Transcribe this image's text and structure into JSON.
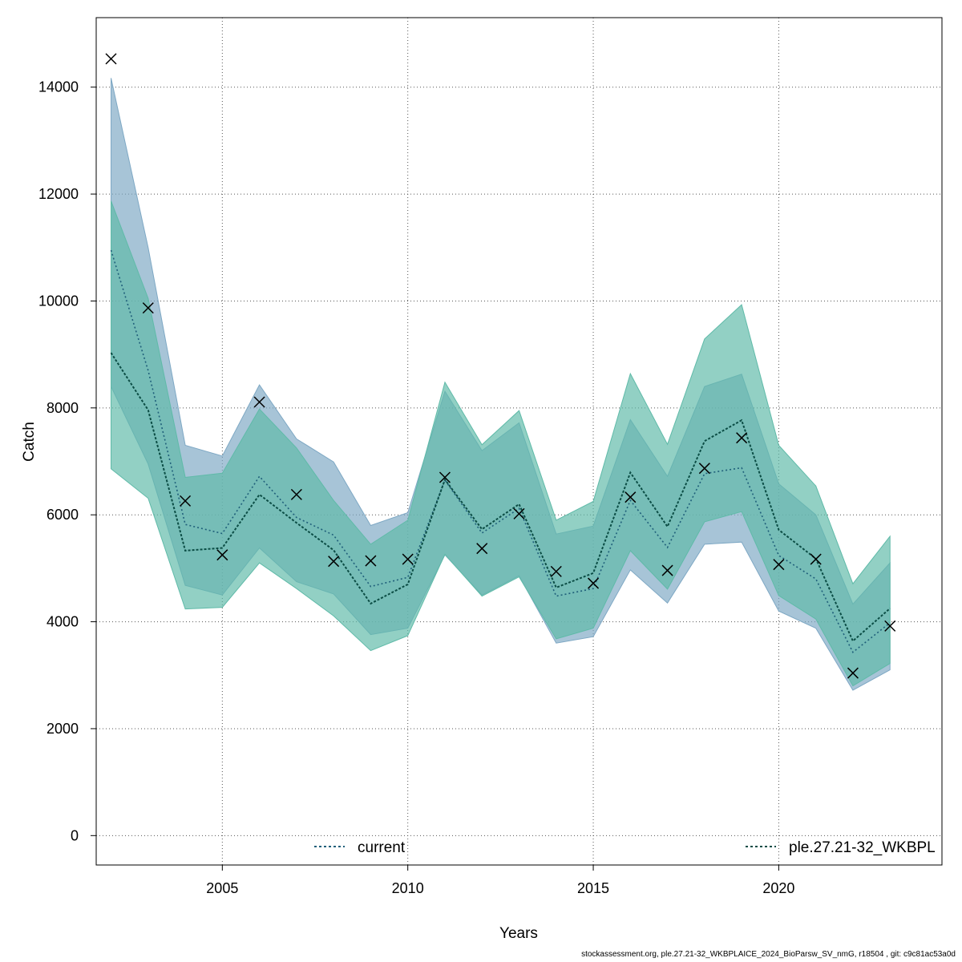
{
  "chart_data": {
    "type": "line",
    "xlabel": "Years",
    "ylabel": "Catch",
    "xlim": [
      2001.6,
      2024.4
    ],
    "ylim": [
      -550,
      15300
    ],
    "x_ticks": [
      2005,
      2010,
      2015,
      2020
    ],
    "y_ticks": [
      0,
      2000,
      4000,
      6000,
      8000,
      10000,
      12000,
      14000
    ],
    "grid": true,
    "legend_placement": "bottom",
    "x": [
      2002,
      2003,
      2004,
      2005,
      2006,
      2007,
      2008,
      2009,
      2010,
      2011,
      2012,
      2013,
      2014,
      2015,
      2016,
      2017,
      2018,
      2019,
      2020,
      2021,
      2022,
      2023
    ],
    "series": [
      {
        "name": "current",
        "line_color": "#1f5f7a",
        "band_color": "#7ea8c4",
        "estimate": [
          10950,
          8700,
          5820,
          5650,
          6720,
          5950,
          5620,
          4660,
          4830,
          6650,
          5660,
          6120,
          4480,
          4620,
          6270,
          5390,
          6770,
          6880,
          5240,
          4800,
          3430,
          3980
        ],
        "lower": [
          8400,
          6950,
          4680,
          4500,
          5380,
          4750,
          4520,
          3760,
          3880,
          5250,
          4500,
          4860,
          3600,
          3720,
          4970,
          4350,
          5450,
          5490,
          4200,
          3880,
          2720,
          3100
        ],
        "upper": [
          14170,
          11000,
          7300,
          7100,
          8430,
          7420,
          6990,
          5800,
          6040,
          8310,
          7200,
          7720,
          5640,
          5790,
          7780,
          6720,
          8400,
          8630,
          6580,
          6000,
          4330,
          5100
        ]
      },
      {
        "name": "ple.27.21-32_WKBPL",
        "line_color": "#0b4d45",
        "band_color": "#5fbaa8",
        "estimate": [
          9030,
          7960,
          5330,
          5380,
          6380,
          5850,
          5340,
          4340,
          4700,
          6660,
          5730,
          6200,
          4640,
          4910,
          6790,
          5780,
          7380,
          7770,
          5720,
          5180,
          3640,
          4250
        ],
        "lower": [
          6860,
          6310,
          4240,
          4270,
          5100,
          4620,
          4110,
          3460,
          3740,
          5260,
          4480,
          4840,
          3680,
          3880,
          5330,
          4610,
          5870,
          6060,
          4490,
          4050,
          2800,
          3220
        ],
        "upper": [
          11870,
          10050,
          6700,
          6780,
          7980,
          7250,
          6270,
          5450,
          5900,
          8480,
          7310,
          7950,
          5900,
          6250,
          8640,
          7320,
          9290,
          9930,
          7300,
          6540,
          4710,
          5600
        ]
      }
    ],
    "observed": {
      "marker": "x",
      "values": [
        14530,
        9870,
        6260,
        5250,
        8110,
        6380,
        5130,
        5140,
        5170,
        6700,
        5370,
        6020,
        4940,
        4720,
        6330,
        4960,
        6870,
        7440,
        5070,
        5170,
        3040,
        3920
      ]
    }
  },
  "footer": "stockassessment.org, ple.27.21-32_WKBPLAICE_2024_BioParsw_SV_nmG, r18504 , git: c9c81ac53a0d"
}
